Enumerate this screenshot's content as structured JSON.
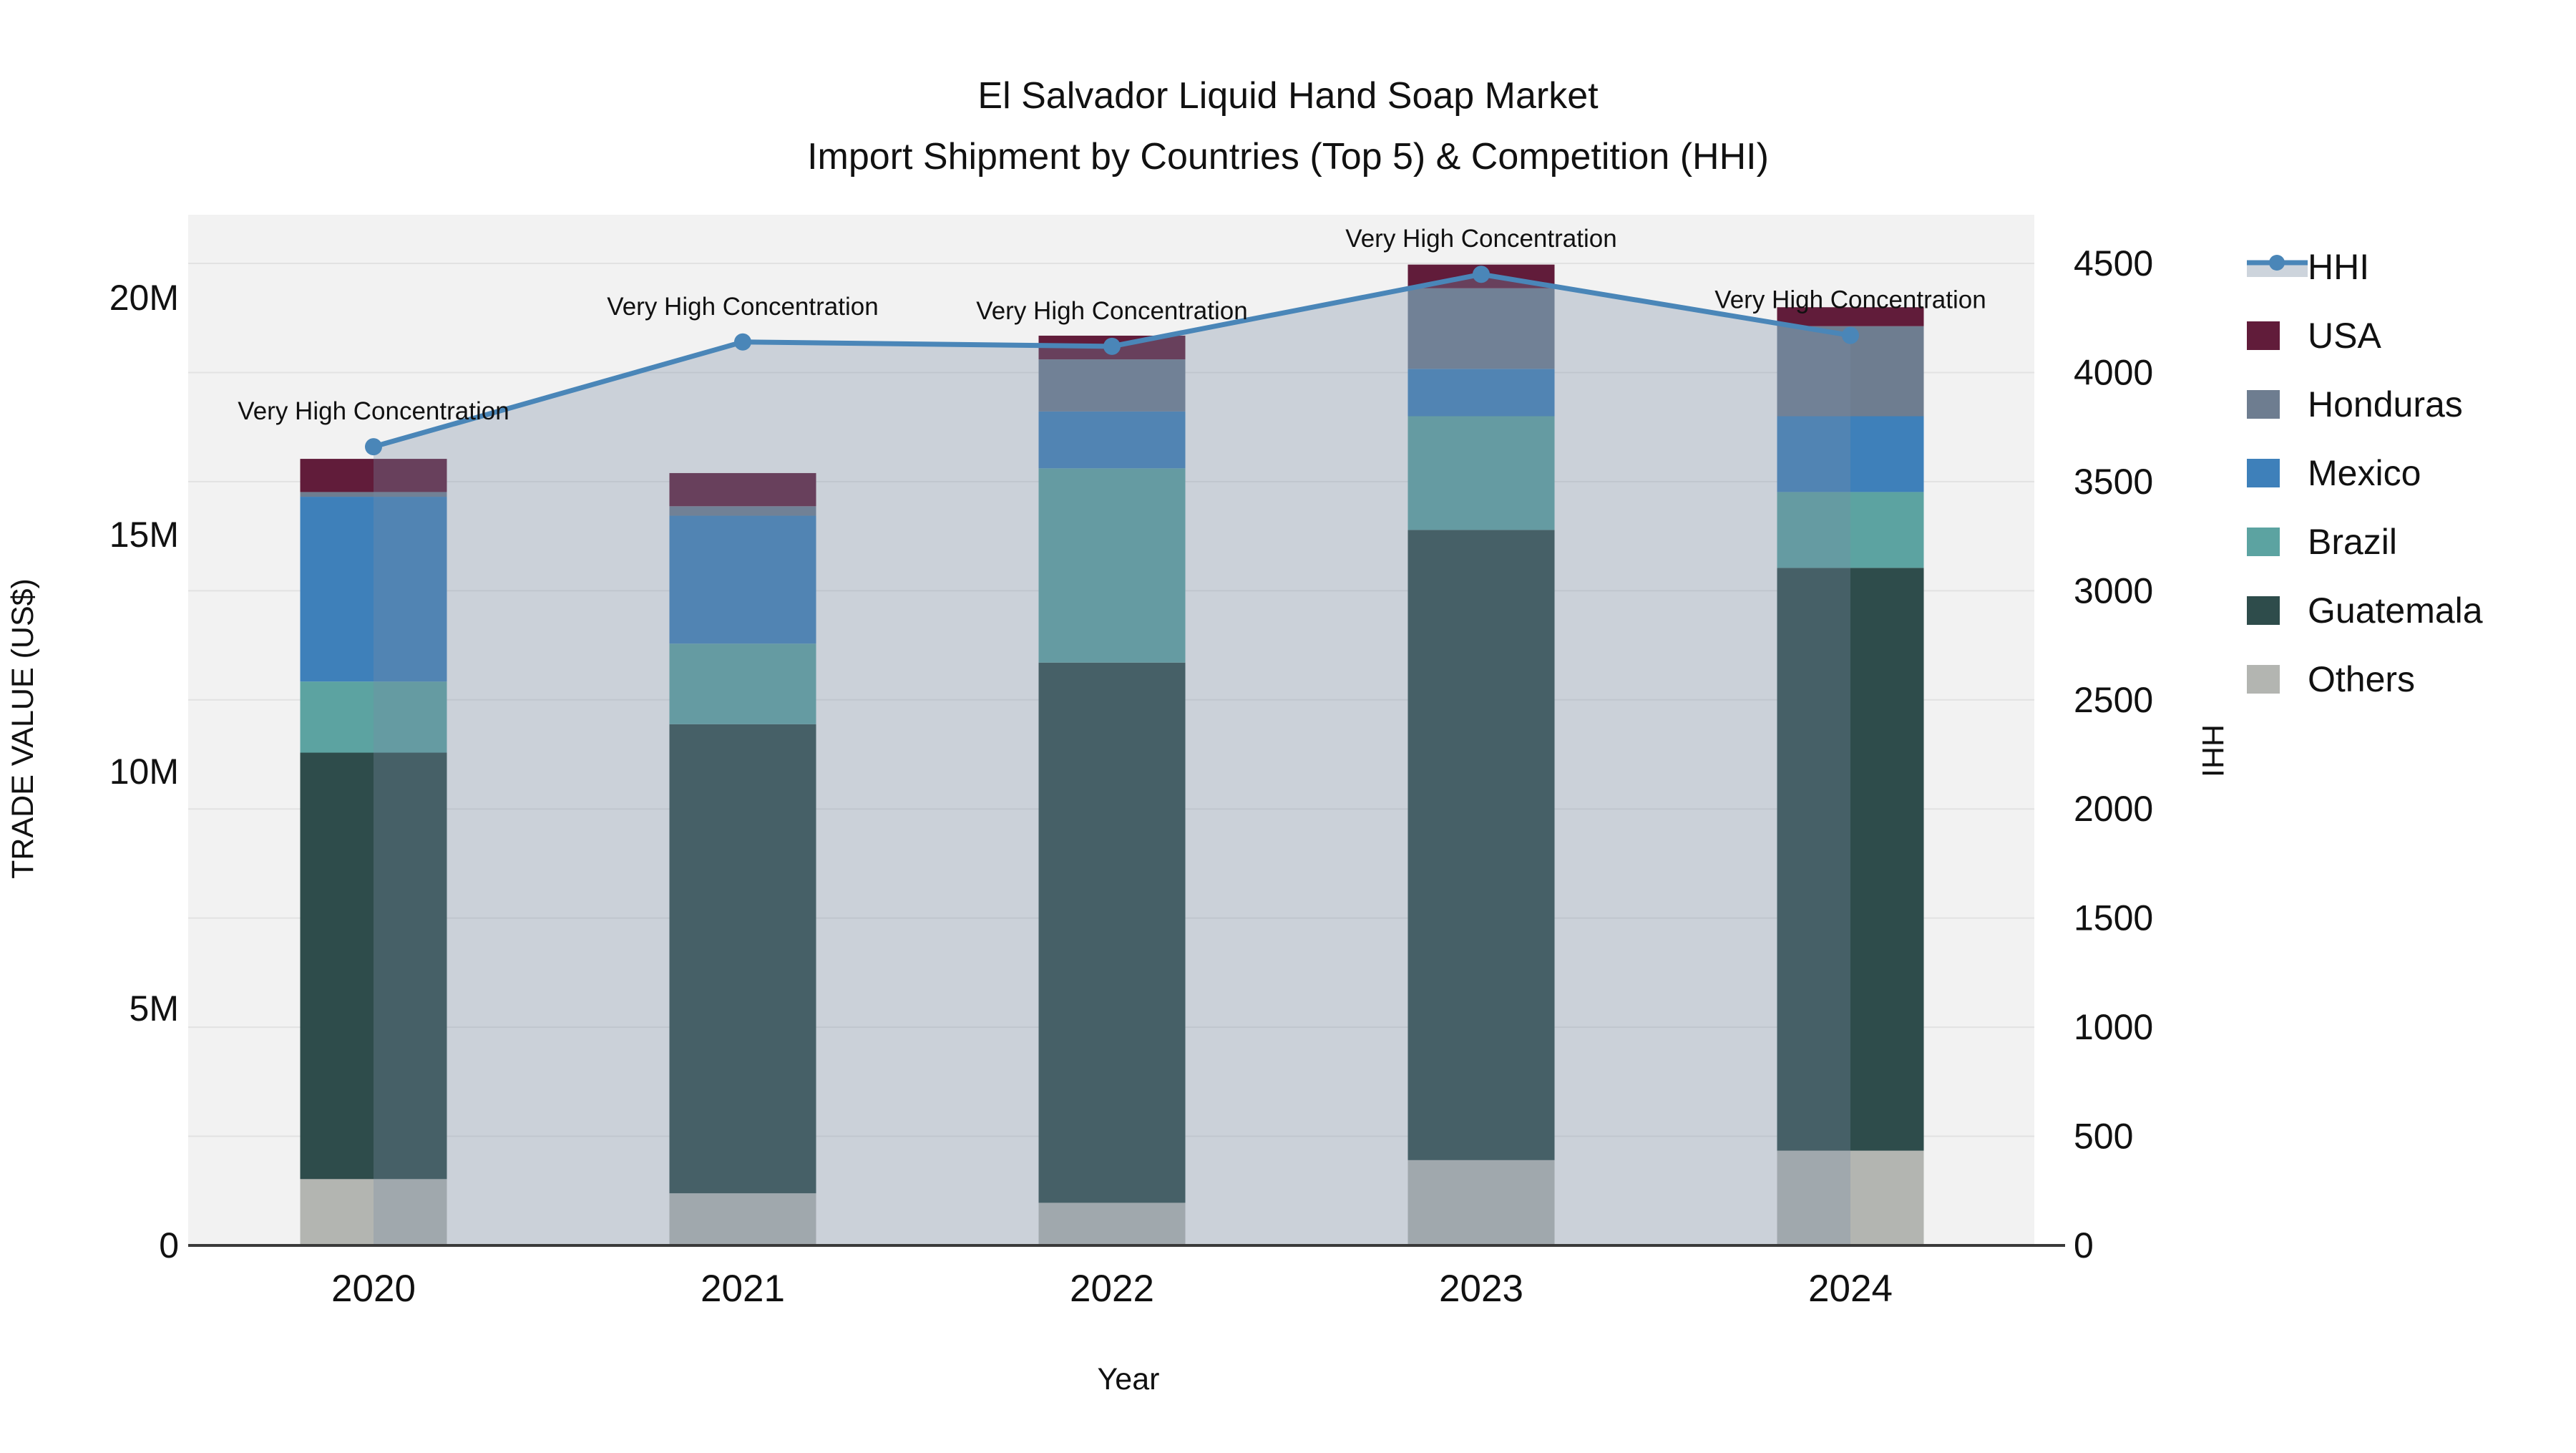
{
  "title": {
    "line1": "El Salvador Liquid Hand Soap Market",
    "line2": "Import Shipment by Countries (Top 5) & Competition (HHI)"
  },
  "axes": {
    "x_title": "Year",
    "y_left_title": "TRADE VALUE (US$)",
    "y_right_title": "HHI"
  },
  "legend": {
    "position": "right",
    "items": [
      {
        "label": "HHI",
        "type": "line",
        "color": "#4a86b8",
        "band_color": "#cdd4dc"
      },
      {
        "label": "USA",
        "type": "swatch",
        "color": "#611c3a"
      },
      {
        "label": "Honduras",
        "type": "swatch",
        "color": "#6e7d90"
      },
      {
        "label": "Mexico",
        "type": "swatch",
        "color": "#3e80ba"
      },
      {
        "label": "Brazil",
        "type": "swatch",
        "color": "#5ca3a1"
      },
      {
        "label": "Guatemala",
        "type": "swatch",
        "color": "#2e4c4b"
      },
      {
        "label": "Others",
        "type": "swatch",
        "color": "#b3b5b1"
      }
    ]
  },
  "chart_data": {
    "type": "bar",
    "subtype": "stacked bars with overlaid line on secondary axis",
    "categories": [
      "2020",
      "2021",
      "2022",
      "2023",
      "2024"
    ],
    "value_unit": "million US$",
    "stack_order_bottom_to_top": [
      "Others",
      "Guatemala",
      "Brazil",
      "Mexico",
      "Honduras",
      "USA"
    ],
    "series": [
      {
        "name": "Others",
        "color": "#b3b5b1",
        "values": [
          1.4,
          1.1,
          0.9,
          1.8,
          2.0
        ]
      },
      {
        "name": "Guatemala",
        "color": "#2e4c4b",
        "values": [
          9.0,
          9.9,
          11.4,
          13.3,
          12.3
        ]
      },
      {
        "name": "Brazil",
        "color": "#5ca3a1",
        "values": [
          1.5,
          1.7,
          4.1,
          2.4,
          1.6
        ]
      },
      {
        "name": "Mexico",
        "color": "#3e80ba",
        "values": [
          3.9,
          2.7,
          1.2,
          1.0,
          1.6
        ]
      },
      {
        "name": "Honduras",
        "color": "#6e7d90",
        "values": [
          0.1,
          0.2,
          1.1,
          1.7,
          1.9
        ]
      },
      {
        "name": "USA",
        "color": "#611c3a",
        "values": [
          0.7,
          0.7,
          0.5,
          0.5,
          0.4
        ]
      }
    ],
    "bar_totals": [
      16.6,
      16.3,
      19.2,
      20.7,
      19.8
    ],
    "line": {
      "name": "HHI",
      "axis": "right",
      "color": "#4a86b8",
      "fill": "tozeroy",
      "fill_color": "rgba(122,141,166,0.32)",
      "values": [
        3660,
        4140,
        4120,
        4450,
        4170
      ]
    },
    "annotations": [
      "Very High Concentration",
      "Very High Concentration",
      "Very High Concentration",
      "Very High Concentration",
      "Very High Concentration"
    ],
    "xlabel": "Year",
    "ylabel_left": "TRADE VALUE (US$)",
    "ylabel_right": "HHI",
    "y_left": {
      "min": 0,
      "max_visible_tick": 20,
      "ticks": [
        {
          "value": 0,
          "label": "0"
        },
        {
          "value": 5,
          "label": "5M"
        },
        {
          "value": 10,
          "label": "10M"
        },
        {
          "value": 15,
          "label": "15M"
        },
        {
          "value": 20,
          "label": "20M"
        }
      ]
    },
    "y_right": {
      "min": 0,
      "max_visible_tick": 4500,
      "ticks": [
        {
          "value": 0,
          "label": "0"
        },
        {
          "value": 500,
          "label": "500"
        },
        {
          "value": 1000,
          "label": "1000"
        },
        {
          "value": 1500,
          "label": "1500"
        },
        {
          "value": 2000,
          "label": "2000"
        },
        {
          "value": 2500,
          "label": "2500"
        },
        {
          "value": 3000,
          "label": "3000"
        },
        {
          "value": 3500,
          "label": "3500"
        },
        {
          "value": 4000,
          "label": "4000"
        },
        {
          "value": 4500,
          "label": "4500"
        }
      ]
    },
    "grid": "horizontal gridlines at right-axis 500 steps",
    "plot_bg_color": "#f2f2f2",
    "grid_color": "#e2e2e2",
    "axis_line_color": "#3a3a3a",
    "legend_position": "right"
  }
}
